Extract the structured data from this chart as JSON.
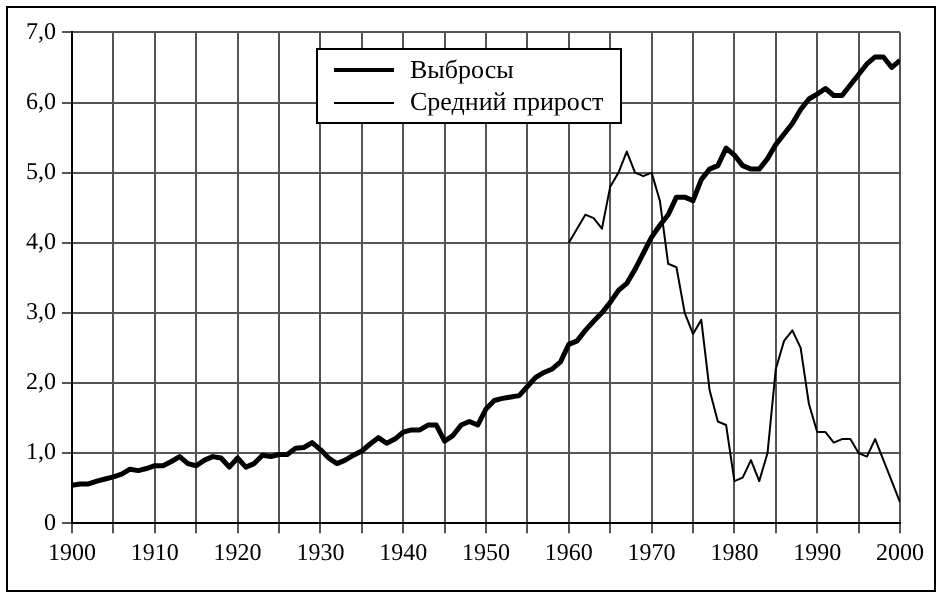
{
  "chart_data": {
    "type": "line",
    "x": [
      1900,
      1901,
      1902,
      1903,
      1904,
      1905,
      1906,
      1907,
      1908,
      1909,
      1910,
      1911,
      1912,
      1913,
      1914,
      1915,
      1916,
      1917,
      1918,
      1919,
      1920,
      1921,
      1922,
      1923,
      1924,
      1925,
      1926,
      1927,
      1928,
      1929,
      1930,
      1931,
      1932,
      1933,
      1934,
      1935,
      1936,
      1937,
      1938,
      1939,
      1940,
      1941,
      1942,
      1943,
      1944,
      1945,
      1946,
      1947,
      1948,
      1949,
      1950,
      1951,
      1952,
      1953,
      1954,
      1955,
      1956,
      1957,
      1958,
      1959,
      1960,
      1961,
      1962,
      1963,
      1964,
      1965,
      1966,
      1967,
      1968,
      1969,
      1970,
      1971,
      1972,
      1973,
      1974,
      1975,
      1976,
      1977,
      1978,
      1979,
      1980,
      1981,
      1982,
      1983,
      1984,
      1985,
      1986,
      1987,
      1988,
      1989,
      1990,
      1991,
      1992,
      1993,
      1994,
      1995,
      1996,
      1997,
      1998,
      1999,
      2000
    ],
    "series": [
      {
        "name": "Выбросы",
        "color": "#000000",
        "values": [
          0.54,
          0.56,
          0.56,
          0.6,
          0.63,
          0.66,
          0.7,
          0.77,
          0.75,
          0.78,
          0.82,
          0.82,
          0.88,
          0.95,
          0.85,
          0.82,
          0.9,
          0.95,
          0.93,
          0.8,
          0.93,
          0.8,
          0.85,
          0.97,
          0.95,
          0.98,
          0.98,
          1.07,
          1.08,
          1.15,
          1.05,
          0.93,
          0.85,
          0.9,
          0.97,
          1.03,
          1.13,
          1.22,
          1.14,
          1.2,
          1.3,
          1.33,
          1.33,
          1.4,
          1.4,
          1.17,
          1.25,
          1.4,
          1.45,
          1.4,
          1.63,
          1.75,
          1.78,
          1.8,
          1.82,
          1.95,
          2.08,
          2.15,
          2.2,
          2.3,
          2.55,
          2.6,
          2.75,
          2.88,
          3.0,
          3.15,
          3.32,
          3.42,
          3.62,
          3.85,
          4.08,
          4.25,
          4.4,
          4.65,
          4.65,
          4.6,
          4.9,
          5.05,
          5.1,
          5.35,
          5.25,
          5.1,
          5.05,
          5.05,
          5.2,
          5.4,
          5.55,
          5.7,
          5.9,
          6.05,
          6.12,
          6.2,
          6.1,
          6.1,
          6.25,
          6.4,
          6.55,
          6.65,
          6.65,
          6.5,
          6.6
        ]
      },
      {
        "name": "Средний прирост",
        "color": "#000000",
        "x": [
          1960,
          1961,
          1962,
          1963,
          1964,
          1965,
          1966,
          1967,
          1968,
          1969,
          1970,
          1971,
          1972,
          1973,
          1974,
          1975,
          1976,
          1977,
          1978,
          1979,
          1980,
          1981,
          1982,
          1983,
          1984,
          1985,
          1986,
          1987,
          1988,
          1989,
          1990,
          1991,
          1992,
          1993,
          1994,
          1995,
          1996,
          1997,
          1998,
          1999,
          2000
        ],
        "values": [
          4.0,
          4.2,
          4.4,
          4.35,
          4.2,
          4.8,
          5.0,
          5.3,
          5.0,
          4.95,
          5.0,
          4.6,
          3.7,
          3.65,
          3.0,
          2.7,
          2.9,
          1.9,
          1.45,
          1.4,
          0.6,
          0.65,
          0.9,
          0.6,
          1.0,
          2.2,
          2.6,
          2.75,
          2.5,
          1.7,
          1.3,
          1.3,
          1.15,
          1.2,
          1.2,
          1.0,
          0.95,
          1.2,
          0.9,
          0.6,
          0.3
        ]
      }
    ],
    "xlim": [
      1900,
      2000
    ],
    "xticks": [
      1900,
      {
        "value": 1905,
        "label": null
      },
      1910,
      {
        "value": 1915,
        "label": null
      },
      1920,
      {
        "value": 1925,
        "label": null
      },
      1930,
      {
        "value": 1935,
        "label": null
      },
      1940,
      {
        "value": 1945,
        "label": null
      },
      1950,
      {
        "value": 1955,
        "label": null
      },
      1960,
      {
        "value": 1965,
        "label": null
      },
      1970,
      {
        "value": 1975,
        "label": null
      },
      1980,
      {
        "value": 1985,
        "label": null
      },
      1990,
      {
        "value": 1995,
        "label": null
      },
      2000
    ],
    "ylim": [
      0,
      7
    ],
    "yticks": [
      0,
      {
        "value": 1,
        "label": "1,0"
      },
      {
        "value": 2,
        "label": "2,0"
      },
      {
        "value": 3,
        "label": "3,0"
      },
      {
        "value": 4,
        "label": "4,0"
      },
      {
        "value": 5,
        "label": "5,0"
      },
      {
        "value": 6,
        "label": "6,0"
      },
      {
        "value": 7,
        "label": "7,0"
      }
    ],
    "grid": true,
    "legend": "top",
    "marker": "none"
  }
}
